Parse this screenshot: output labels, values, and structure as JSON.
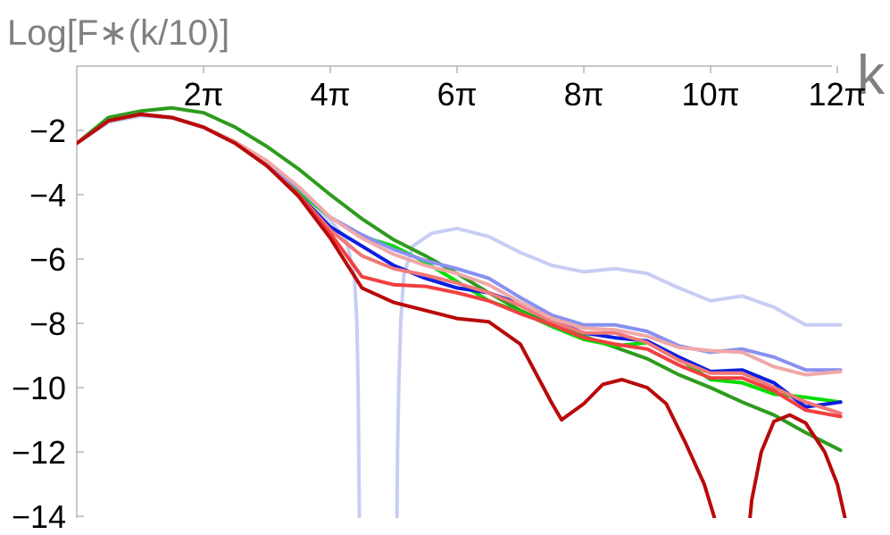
{
  "chart_data": {
    "type": "line",
    "ylabel": "Log[F∗(k/10)]",
    "xlabel": "k",
    "xlim": [
      0,
      12.15
    ],
    "ylim": [
      -14,
      0
    ],
    "x_unit": "π",
    "x_ticks": [
      {
        "value": 2,
        "label": "2π"
      },
      {
        "value": 4,
        "label": "4π"
      },
      {
        "value": 6,
        "label": "6π"
      },
      {
        "value": 8,
        "label": "8π"
      },
      {
        "value": 10,
        "label": "10π"
      },
      {
        "value": 12,
        "label": "12π"
      }
    ],
    "y_ticks": [
      {
        "value": -2,
        "label": "−2"
      },
      {
        "value": -4,
        "label": "−4"
      },
      {
        "value": -6,
        "label": "−6"
      },
      {
        "value": -8,
        "label": "−8"
      },
      {
        "value": -10,
        "label": "−10"
      },
      {
        "value": -12,
        "label": "−12"
      },
      {
        "value": -14,
        "label": "−14"
      }
    ],
    "grid": false,
    "series": [
      {
        "color": "#c8cdf4",
        "width": 3,
        "points": [
          [
            0,
            -2.4
          ],
          [
            0.5,
            -1.75
          ],
          [
            1,
            -1.55
          ],
          [
            1.5,
            -1.6
          ],
          [
            2,
            -1.9
          ],
          [
            2.5,
            -2.4
          ],
          [
            3,
            -3.1
          ],
          [
            3.5,
            -3.95
          ],
          [
            4,
            -4.8
          ],
          [
            4.25,
            -5.4
          ],
          [
            4.38,
            -6.5
          ],
          [
            4.42,
            -8
          ],
          [
            4.44,
            -10
          ],
          [
            4.45,
            -12
          ],
          [
            4.46,
            -14.5
          ],
          [
            5.05,
            -14.5
          ],
          [
            5.06,
            -12
          ],
          [
            5.08,
            -10
          ],
          [
            5.11,
            -8
          ],
          [
            5.16,
            -6.5
          ],
          [
            5.3,
            -5.6
          ],
          [
            5.6,
            -5.2
          ],
          [
            6,
            -5.05
          ],
          [
            6.5,
            -5.3
          ],
          [
            7,
            -5.8
          ],
          [
            7.5,
            -6.2
          ],
          [
            8,
            -6.4
          ],
          [
            8.5,
            -6.3
          ],
          [
            9,
            -6.45
          ],
          [
            9.5,
            -6.9
          ],
          [
            10,
            -7.3
          ],
          [
            10.5,
            -7.15
          ],
          [
            11,
            -7.5
          ],
          [
            11.5,
            -8.05
          ],
          [
            12.05,
            -8.05
          ]
        ]
      },
      {
        "color": "#2e9b1e",
        "width": 3.6,
        "points": [
          [
            0,
            -2.4
          ],
          [
            0.5,
            -1.6
          ],
          [
            1,
            -1.4
          ],
          [
            1.5,
            -1.3
          ],
          [
            2,
            -1.45
          ],
          [
            2.5,
            -1.9
          ],
          [
            3,
            -2.5
          ],
          [
            3.5,
            -3.2
          ],
          [
            4,
            -4
          ],
          [
            4.5,
            -4.75
          ],
          [
            5,
            -5.4
          ],
          [
            5.5,
            -5.9
          ],
          [
            6,
            -6.45
          ],
          [
            6.5,
            -7.05
          ],
          [
            7,
            -7.6
          ],
          [
            7.5,
            -8.05
          ],
          [
            8,
            -8.4
          ],
          [
            8.5,
            -8.75
          ],
          [
            9,
            -9.1
          ],
          [
            9.5,
            -9.6
          ],
          [
            10,
            -10
          ],
          [
            10.5,
            -10.45
          ],
          [
            11,
            -10.85
          ],
          [
            11.5,
            -11.4
          ],
          [
            12.05,
            -11.95
          ]
        ]
      },
      {
        "color": "#00dd00",
        "width": 3.6,
        "points": [
          [
            0,
            -2.4
          ],
          [
            0.5,
            -1.7
          ],
          [
            1,
            -1.5
          ],
          [
            1.5,
            -1.6
          ],
          [
            2,
            -1.9
          ],
          [
            2.5,
            -2.4
          ],
          [
            3,
            -3.1
          ],
          [
            3.5,
            -3.9
          ],
          [
            4,
            -4.7
          ],
          [
            4.5,
            -5.3
          ],
          [
            5,
            -5.6
          ],
          [
            5.5,
            -6.1
          ],
          [
            6,
            -6.7
          ],
          [
            6.5,
            -7.3
          ],
          [
            7,
            -7.65
          ],
          [
            7.5,
            -8.1
          ],
          [
            8,
            -8.5
          ],
          [
            8.5,
            -8.7
          ],
          [
            9,
            -8.6
          ],
          [
            9.5,
            -9.1
          ],
          [
            10,
            -9.75
          ],
          [
            10.5,
            -9.85
          ],
          [
            11,
            -10.2
          ],
          [
            11.5,
            -10.3
          ],
          [
            12.05,
            -10.45
          ]
        ]
      },
      {
        "color": "#0b1ee0",
        "width": 3.6,
        "points": [
          [
            0,
            -2.4
          ],
          [
            0.5,
            -1.7
          ],
          [
            1,
            -1.5
          ],
          [
            1.5,
            -1.6
          ],
          [
            2,
            -1.9
          ],
          [
            2.5,
            -2.4
          ],
          [
            3,
            -3.1
          ],
          [
            3.5,
            -4
          ],
          [
            4,
            -5
          ],
          [
            4.5,
            -5.6
          ],
          [
            5,
            -6.2
          ],
          [
            5.5,
            -6.6
          ],
          [
            6,
            -6.9
          ],
          [
            6.5,
            -7.05
          ],
          [
            7,
            -7.4
          ],
          [
            7.5,
            -7.9
          ],
          [
            8,
            -8.3
          ],
          [
            8.5,
            -8.45
          ],
          [
            9,
            -8.55
          ],
          [
            9.5,
            -9.05
          ],
          [
            10,
            -9.5
          ],
          [
            10.5,
            -9.45
          ],
          [
            11,
            -9.85
          ],
          [
            11.5,
            -10.6
          ],
          [
            12.05,
            -10.45
          ]
        ]
      },
      {
        "color": "#8890f0",
        "width": 3.6,
        "points": [
          [
            0,
            -2.4
          ],
          [
            0.5,
            -1.7
          ],
          [
            1,
            -1.5
          ],
          [
            1.5,
            -1.6
          ],
          [
            2,
            -1.9
          ],
          [
            2.5,
            -2.4
          ],
          [
            3,
            -3.05
          ],
          [
            3.5,
            -3.8
          ],
          [
            4,
            -4.7
          ],
          [
            4.5,
            -5.25
          ],
          [
            5,
            -5.7
          ],
          [
            5.5,
            -6.05
          ],
          [
            6,
            -6.3
          ],
          [
            6.5,
            -6.6
          ],
          [
            7,
            -7.2
          ],
          [
            7.5,
            -7.75
          ],
          [
            8,
            -8.05
          ],
          [
            8.5,
            -8.05
          ],
          [
            9,
            -8.25
          ],
          [
            9.5,
            -8.7
          ],
          [
            10,
            -8.9
          ],
          [
            10.5,
            -8.8
          ],
          [
            11,
            -9.05
          ],
          [
            11.5,
            -9.45
          ],
          [
            12.05,
            -9.45
          ]
        ]
      },
      {
        "color": "#f07878",
        "width": 3.6,
        "points": [
          [
            0,
            -2.4
          ],
          [
            0.5,
            -1.7
          ],
          [
            1,
            -1.5
          ],
          [
            1.5,
            -1.6
          ],
          [
            2,
            -1.9
          ],
          [
            2.5,
            -2.4
          ],
          [
            3,
            -3.1
          ],
          [
            3.5,
            -4
          ],
          [
            4,
            -5.1
          ],
          [
            4.5,
            -5.9
          ],
          [
            5,
            -6.3
          ],
          [
            5.5,
            -6.5
          ],
          [
            6,
            -6.75
          ],
          [
            6.5,
            -7.05
          ],
          [
            7,
            -7.45
          ],
          [
            7.5,
            -7.95
          ],
          [
            8,
            -8.3
          ],
          [
            8.5,
            -8.3
          ],
          [
            9,
            -8.6
          ],
          [
            9.5,
            -9.15
          ],
          [
            10,
            -9.55
          ],
          [
            10.5,
            -9.55
          ],
          [
            11,
            -10
          ],
          [
            11.5,
            -10.45
          ],
          [
            12.05,
            -10.8
          ]
        ]
      },
      {
        "color": "#f0a8a8",
        "width": 3.6,
        "points": [
          [
            0,
            -2.4
          ],
          [
            0.5,
            -1.7
          ],
          [
            1,
            -1.5
          ],
          [
            1.5,
            -1.6
          ],
          [
            2,
            -1.9
          ],
          [
            2.5,
            -2.35
          ],
          [
            3,
            -2.95
          ],
          [
            3.5,
            -3.75
          ],
          [
            4,
            -4.7
          ],
          [
            4.5,
            -5.35
          ],
          [
            5,
            -5.85
          ],
          [
            5.5,
            -6.2
          ],
          [
            6,
            -6.45
          ],
          [
            6.5,
            -6.8
          ],
          [
            7,
            -7.35
          ],
          [
            7.5,
            -7.85
          ],
          [
            8,
            -8.15
          ],
          [
            8.5,
            -8.2
          ],
          [
            9,
            -8.4
          ],
          [
            9.5,
            -8.75
          ],
          [
            10,
            -8.85
          ],
          [
            10.5,
            -8.9
          ],
          [
            11,
            -9.35
          ],
          [
            11.5,
            -9.6
          ],
          [
            12.05,
            -9.5
          ]
        ]
      },
      {
        "color": "#f04040",
        "width": 3.6,
        "points": [
          [
            0,
            -2.4
          ],
          [
            0.5,
            -1.7
          ],
          [
            1,
            -1.5
          ],
          [
            1.5,
            -1.6
          ],
          [
            2,
            -1.9
          ],
          [
            2.5,
            -2.4
          ],
          [
            3,
            -3.1
          ],
          [
            3.5,
            -4
          ],
          [
            4,
            -5.2
          ],
          [
            4.5,
            -6.55
          ],
          [
            5,
            -6.8
          ],
          [
            5.5,
            -6.85
          ],
          [
            6,
            -7.05
          ],
          [
            6.5,
            -7.3
          ],
          [
            7,
            -7.7
          ],
          [
            7.5,
            -8.05
          ],
          [
            8,
            -8.45
          ],
          [
            8.5,
            -8.65
          ],
          [
            9,
            -8.8
          ],
          [
            9.5,
            -9.3
          ],
          [
            10,
            -9.7
          ],
          [
            10.5,
            -9.7
          ],
          [
            11,
            -10.1
          ],
          [
            11.5,
            -10.7
          ],
          [
            12.05,
            -10.9
          ]
        ]
      },
      {
        "color": "#b80a0a",
        "width": 3.6,
        "points": [
          [
            0,
            -2.4
          ],
          [
            0.5,
            -1.7
          ],
          [
            1,
            -1.5
          ],
          [
            1.5,
            -1.6
          ],
          [
            2,
            -1.9
          ],
          [
            2.5,
            -2.4
          ],
          [
            3,
            -3.1
          ],
          [
            3.5,
            -4.05
          ],
          [
            4,
            -5.35
          ],
          [
            4.5,
            -6.9
          ],
          [
            5,
            -7.35
          ],
          [
            5.5,
            -7.6
          ],
          [
            6,
            -7.85
          ],
          [
            6.5,
            -7.95
          ],
          [
            7,
            -8.65
          ],
          [
            7.5,
            -10.5
          ],
          [
            7.65,
            -11
          ],
          [
            8,
            -10.5
          ],
          [
            8.3,
            -9.9
          ],
          [
            8.6,
            -9.75
          ],
          [
            9,
            -10
          ],
          [
            9.3,
            -10.5
          ],
          [
            9.6,
            -11.7
          ],
          [
            9.9,
            -13
          ],
          [
            10.1,
            -14.3
          ],
          [
            10.15,
            -14.5
          ],
          [
            10.6,
            -14.5
          ],
          [
            10.65,
            -13.5
          ],
          [
            10.8,
            -12
          ],
          [
            11,
            -11.05
          ],
          [
            11.25,
            -10.85
          ],
          [
            11.5,
            -11.1
          ],
          [
            11.8,
            -12
          ],
          [
            12,
            -13
          ],
          [
            12.15,
            -14.3
          ],
          [
            12.2,
            -14.5
          ]
        ]
      }
    ]
  }
}
